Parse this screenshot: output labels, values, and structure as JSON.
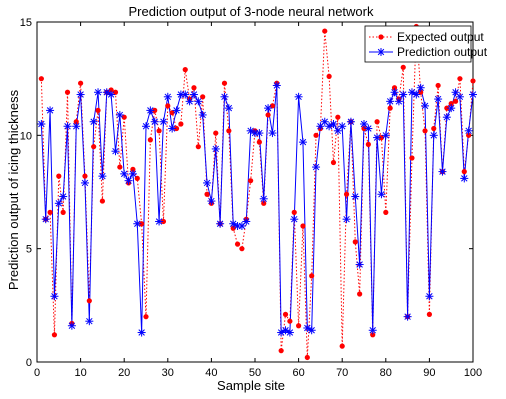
{
  "chart_data": {
    "type": "line",
    "title": "Prediction output of 3-node neural network",
    "xlabel": "Sample site",
    "ylabel": "Prediction output of icing thickness",
    "xlim": [
      0,
      100
    ],
    "ylim": [
      0,
      15
    ],
    "xticks": [
      0,
      10,
      20,
      30,
      40,
      50,
      60,
      70,
      80,
      90,
      100
    ],
    "yticks": [
      0,
      5,
      10,
      15
    ],
    "grid": false,
    "legend_position": "top-right",
    "x": [
      1,
      2,
      3,
      4,
      5,
      6,
      7,
      8,
      9,
      10,
      11,
      12,
      13,
      14,
      15,
      16,
      17,
      18,
      19,
      20,
      21,
      22,
      23,
      24,
      25,
      26,
      27,
      28,
      29,
      30,
      31,
      32,
      33,
      34,
      35,
      36,
      37,
      38,
      39,
      40,
      41,
      42,
      43,
      44,
      45,
      46,
      47,
      48,
      49,
      50,
      51,
      52,
      53,
      54,
      55,
      56,
      57,
      58,
      59,
      60,
      61,
      62,
      63,
      64,
      65,
      66,
      67,
      68,
      69,
      70,
      71,
      72,
      73,
      74,
      75,
      76,
      77,
      78,
      79,
      80,
      81,
      82,
      83,
      84,
      85,
      86,
      87,
      88,
      89,
      90,
      91,
      92,
      93,
      94,
      95,
      96,
      97,
      98,
      99,
      100
    ],
    "series": [
      {
        "name": "Expected output",
        "color": "#ff0000",
        "marker": "circle",
        "line_style": "dotted",
        "values": [
          12.5,
          6.3,
          6.6,
          1.2,
          8.2,
          6.6,
          11.9,
          1.7,
          10.6,
          12.3,
          8.2,
          2.7,
          9.5,
          11.1,
          7.1,
          11.9,
          12.0,
          11.9,
          8.6,
          10.8,
          7.9,
          8.5,
          8.1,
          6.1,
          2.0,
          9.8,
          11.1,
          10.2,
          6.2,
          11.3,
          11.0,
          10.3,
          10.5,
          12.9,
          11.6,
          12.1,
          9.5,
          11.7,
          7.4,
          7.0,
          10.1,
          6.1,
          12.3,
          10.2,
          5.9,
          5.2,
          5.0,
          6.3,
          8.0,
          10.2,
          9.7,
          7.0,
          10.9,
          11.3,
          12.3,
          0.5,
          2.1,
          1.8,
          6.6,
          1.6,
          6.0,
          0.2,
          3.8,
          10.0,
          10.3,
          14.6,
          12.6,
          8.8,
          10.8,
          0.7,
          7.4,
          10.6,
          5.3,
          3.0,
          10.3,
          9.6,
          1.2,
          10.6,
          9.9,
          6.6,
          11.2,
          12.1,
          11.6,
          13.0,
          2.0,
          9.0,
          14.8,
          11.9,
          10.2,
          2.1,
          10.3,
          12.2,
          8.4,
          11.2,
          11.4,
          11.5,
          12.5,
          8.4,
          10.0,
          12.4
        ]
      },
      {
        "name": "Prediction output",
        "color": "#0000ff",
        "marker": "asterisk",
        "line_style": "solid",
        "values": [
          10.5,
          6.3,
          11.1,
          2.9,
          7.0,
          7.3,
          10.4,
          1.6,
          10.4,
          11.8,
          7.9,
          1.8,
          10.6,
          11.9,
          8.2,
          11.9,
          11.8,
          9.3,
          10.9,
          8.3,
          8.0,
          8.3,
          6.1,
          1.3,
          10.4,
          11.1,
          10.6,
          6.2,
          10.6,
          11.7,
          10.3,
          11.1,
          11.8,
          11.8,
          11.5,
          11.8,
          11.5,
          10.9,
          7.9,
          7.1,
          9.4,
          6.1,
          11.7,
          11.2,
          6.1,
          6.0,
          6.0,
          6.2,
          10.2,
          10.1,
          10.1,
          7.2,
          11.2,
          10.1,
          12.2,
          1.3,
          1.4,
          1.3,
          6.3,
          11.7,
          9.7,
          1.5,
          1.4,
          8.6,
          10.4,
          10.6,
          10.4,
          10.5,
          10.2,
          10.4,
          6.3,
          10.6,
          7.3,
          4.3,
          10.5,
          10.3,
          1.4,
          9.9,
          7.4,
          10.0,
          11.5,
          11.9,
          11.5,
          11.8,
          2.0,
          11.9,
          11.8,
          12.1,
          11.3,
          2.9,
          10.0,
          11.6,
          8.4,
          10.8,
          11.2,
          11.9,
          11.7,
          8.1,
          10.2,
          11.8
        ]
      }
    ]
  }
}
